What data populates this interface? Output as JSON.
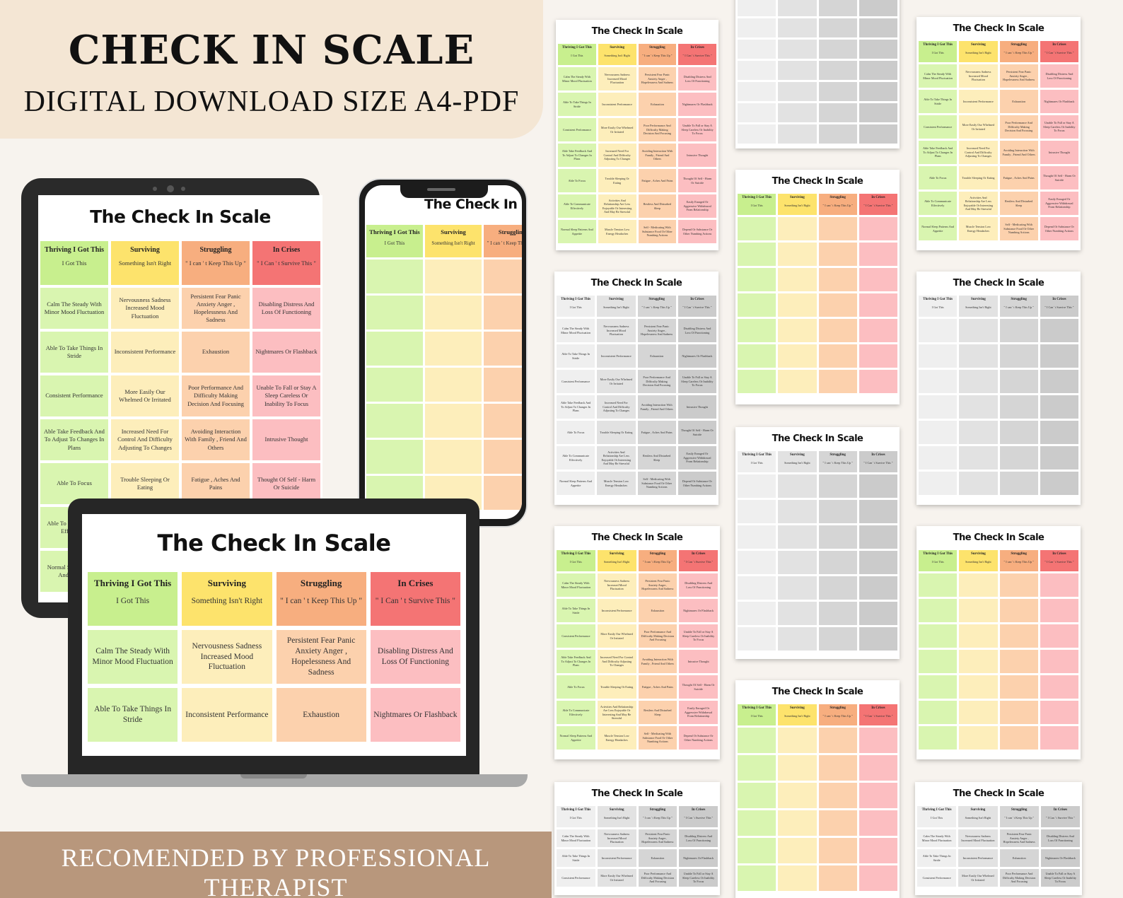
{
  "header": {
    "title": "CHECK IN SCALE",
    "subtitle": "DIGITAL DOWNLOAD SIZE A4-PDF"
  },
  "footer": {
    "text": "RECOMENDED BY PROFESSIONAL THERAPIST"
  },
  "sheet": {
    "title": "The Check In Scale",
    "columns": [
      {
        "name": "Thriving I Got This",
        "sub": "I Got This"
      },
      {
        "name": "Surviving",
        "sub": "Something Isn't Right"
      },
      {
        "name": "Struggling",
        "sub": "\" I can ' t Keep This Up \""
      },
      {
        "name": "In Crises",
        "sub": "\" I Can ' t Survive This \""
      }
    ],
    "rows": [
      [
        "Calm The Steady With Minor Mood Fluctuation",
        "Nervousness Sadness Increased Mood Fluctuation",
        "Persistent Fear Panic Anxiety Anger , Hopelessness And Sadness",
        "Disabling Distress And Loss Of Functioning"
      ],
      [
        "Able To Take Things In Stride",
        "Inconsistent Performance",
        "Exhaustion",
        "Nightmares Or Flashback"
      ],
      [
        "Consistent Performance",
        "More Easily Our Whelmed Or Irritated",
        "Poor Performance And Difficulty Making Decision And Focusing",
        "Unable To Fall or Stay A Sleep Careless Or Inability To Focus"
      ],
      [
        "Able Take Feedback And To Adjust To Changes In Plans",
        "Increased Need For Control And Difficulty Adjusting To Changes",
        "Avoiding Interaction With Family , Friend And Others",
        "Intrusive Thought"
      ],
      [
        "Able To Focus",
        "Trouble Sleeping Or Eating",
        "Fatigue , Aches And Pains",
        "Thought Of Self - Harm Or Suicide"
      ],
      [
        "Able To Communicate Effectively",
        "Activities And Relationship Are Less Enjoyable Or Interesting And May Be Stressful",
        "Restless And Disturbed Sleep",
        "Easily Enraged Or Aggressive Withdrawal From Relationship"
      ],
      [
        "Normal Sleep Patterns And Appetite",
        "Muscle Tension Low Energy Headaches",
        "Self - Medicating With Substance Food Or Other Numbing Actions",
        "Depend Or Substance Or Other Numbing Actions"
      ]
    ]
  }
}
